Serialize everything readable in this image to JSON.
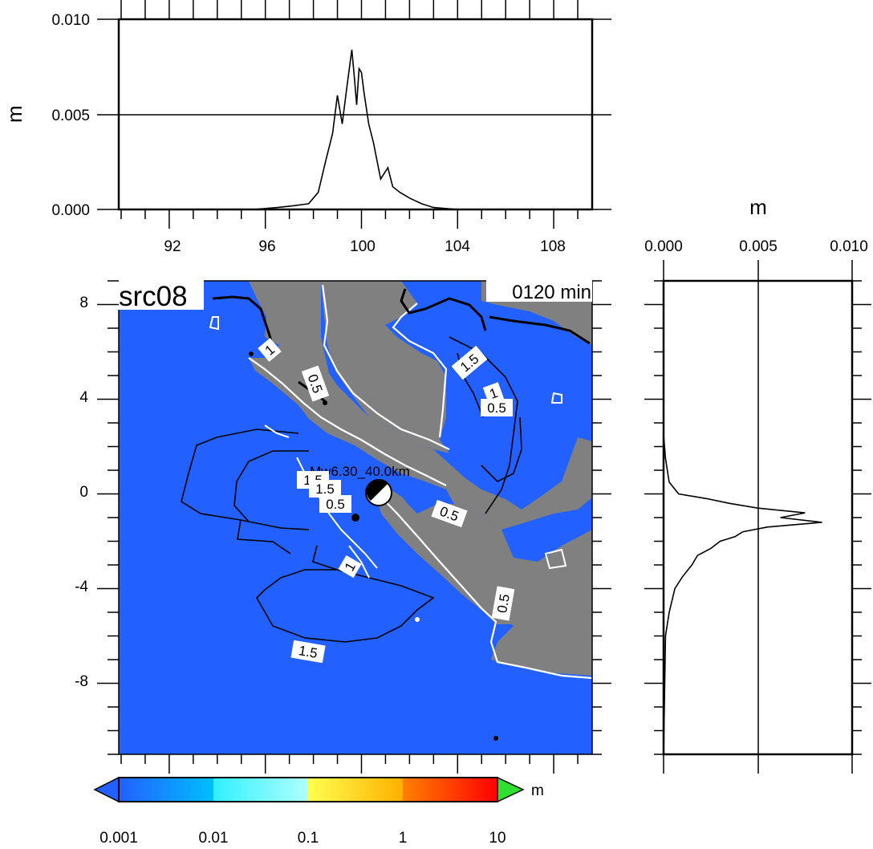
{
  "top_profile": {
    "unit": "m",
    "y_ticks": [
      "0.010",
      "0.005",
      "0.000"
    ],
    "x_ticks": [
      "92",
      "96",
      "100",
      "104",
      "108"
    ],
    "ylim": [
      0,
      0.01
    ],
    "xlim": [
      89.9,
      109.6
    ],
    "reference_line": 0.005
  },
  "right_profile": {
    "unit": "m",
    "x_ticks": [
      "0.000",
      "0.005",
      "0.010"
    ],
    "xlim": [
      0,
      0.01
    ],
    "reference_line": 0.005
  },
  "map": {
    "title": "src08",
    "time_label": "0120 min",
    "lat_ticks": [
      "8",
      "4",
      "0",
      "-4",
      "-8"
    ],
    "lon_range": [
      89.9,
      109.6
    ],
    "lat_range": [
      -11.0,
      9.0
    ],
    "source_label": "Mw6.30_40.0km",
    "epicenter_lon": 99.9,
    "epicenter_lat": -0.1,
    "contour_labels": [
      "1",
      "0.5",
      "1.5",
      "1",
      "0.5",
      "1.5",
      "1.5",
      "0.5",
      "0.5",
      "1",
      "0.5",
      "1.5"
    ],
    "colors": {
      "ocean": "#2260ff",
      "land": "#808080"
    }
  },
  "colorbar": {
    "unit": "m",
    "labels": [
      "0.001",
      "0.01",
      "0.1",
      "1",
      "10"
    ],
    "colors": [
      "#2260ff",
      "#00bfff",
      "#40ffff",
      "#ffff50",
      "#ffa000",
      "#ff0000",
      "#30e030"
    ]
  },
  "chart_data": [
    {
      "type": "line",
      "title": "",
      "xlabel": "",
      "ylabel": "m",
      "x": [
        95.5,
        96.5,
        97.2,
        97.8,
        98.2,
        98.5,
        98.8,
        99.0,
        99.2,
        99.4,
        99.6,
        99.7,
        99.8,
        99.9,
        100.0,
        100.1,
        100.3,
        100.5,
        100.8,
        101.1,
        101.3,
        101.6,
        102.0,
        102.5,
        103.0,
        104.0,
        105.0
      ],
      "values": [
        0.0,
        0.0001,
        0.0002,
        0.0003,
        0.0009,
        0.0025,
        0.004,
        0.006,
        0.0045,
        0.0065,
        0.0084,
        0.007,
        0.0055,
        0.0074,
        0.0072,
        0.0062,
        0.0045,
        0.0035,
        0.0016,
        0.0022,
        0.0012,
        0.0009,
        0.0006,
        0.0003,
        0.0001,
        0.0,
        0.0
      ],
      "ylim": [
        0,
        0.01
      ]
    },
    {
      "type": "line",
      "title": "",
      "xlabel": "m",
      "ylabel": "",
      "y": [
        2.5,
        1.5,
        0.5,
        0.0,
        -0.2,
        -0.4,
        -0.6,
        -0.8,
        -1.0,
        -1.2,
        -1.4,
        -1.6,
        -1.8,
        -2.0,
        -2.3,
        -2.6,
        -3.0,
        -3.5,
        -4.0,
        -5.0,
        -6.0
      ],
      "values": [
        0.0,
        0.0001,
        0.0003,
        0.0008,
        0.0023,
        0.0035,
        0.005,
        0.0075,
        0.0062,
        0.0084,
        0.0055,
        0.0042,
        0.0038,
        0.003,
        0.0025,
        0.0018,
        0.0015,
        0.001,
        0.0006,
        0.0003,
        0.0001
      ],
      "xlim": [
        0,
        0.01
      ]
    }
  ]
}
